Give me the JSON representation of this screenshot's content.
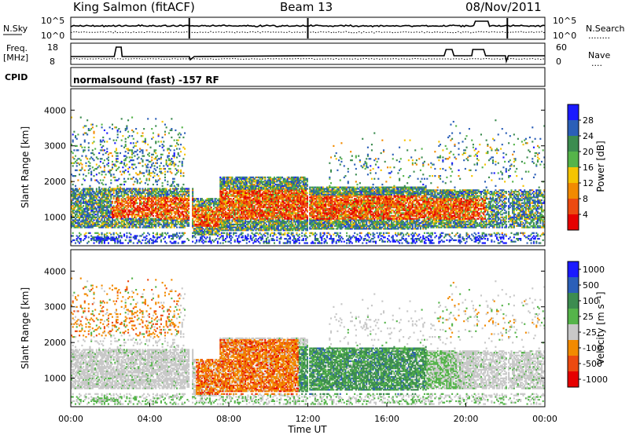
{
  "header": {
    "station": "King Salmon (fitACF)",
    "beam": "Beam 13",
    "date": "08/Nov/2011"
  },
  "noise_panel": {
    "left_label": "N.Sky",
    "right_label": "N.Search",
    "left_ticks": [
      "10^5",
      "10^0"
    ],
    "right_ticks": [
      "10^5",
      "10^0"
    ],
    "right_legend_line": "........"
  },
  "freq_panel": {
    "left_label_1": "Freq.",
    "left_label_2": "[MHz]",
    "right_label": "Nave",
    "left_ticks": [
      "18",
      "8"
    ],
    "right_ticks": [
      "60",
      "0"
    ],
    "right_legend_line": "...."
  },
  "cpid": {
    "label": "CPID",
    "program": "normalsound (fast) -157 RF"
  },
  "colors": {
    "power": [
      "#1a1aff",
      "#2b5fb8",
      "#3c8c50",
      "#55b44a",
      "#f5c400",
      "#f28a00",
      "#ec4a10",
      "#e60000"
    ],
    "velocity": [
      "#1a1aff",
      "#2b5fb8",
      "#3c8c50",
      "#55b44a",
      "#c8c8c8",
      "#f28a00",
      "#ec4a10",
      "#e60000"
    ]
  },
  "chart_data": [
    {
      "type": "heatmap",
      "name": "power",
      "ylabel": "Slant Range [km]",
      "yticks": [
        "1000",
        "2000",
        "3000",
        "4000"
      ],
      "ylim": [
        200,
        4600
      ],
      "xlim": [
        0,
        24
      ],
      "colorbar_label": "Power [dB]",
      "colorbar_ticks": [
        "4",
        "8",
        "12",
        "16",
        "20",
        "24",
        "28"
      ]
    },
    {
      "type": "heatmap",
      "name": "velocity",
      "ylabel": "Slant Range [km]",
      "yticks": [
        "1000",
        "2000",
        "3000",
        "4000"
      ],
      "ylim": [
        200,
        4600
      ],
      "xlim": [
        0,
        24
      ],
      "colorbar_label": "Velocity [m s⁻¹]",
      "colorbar_ticks": [
        "1000",
        "500",
        "100",
        "25",
        "-25",
        "-100",
        "-500",
        "-1000"
      ],
      "xlabel": "Time UT",
      "xticks": [
        "00:00",
        "04:00",
        "08:00",
        "12:00",
        "16:00",
        "20:00",
        "00:00"
      ]
    }
  ]
}
